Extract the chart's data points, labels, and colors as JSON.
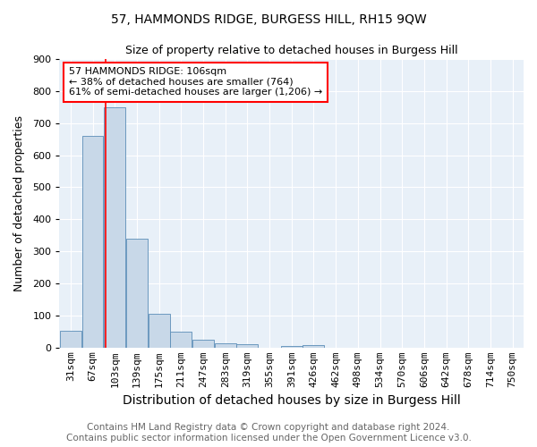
{
  "title": "57, HAMMONDS RIDGE, BURGESS HILL, RH15 9QW",
  "subtitle": "Size of property relative to detached houses in Burgess Hill",
  "xlabel": "Distribution of detached houses by size in Burgess Hill",
  "ylabel": "Number of detached properties",
  "footer_line1": "Contains HM Land Registry data © Crown copyright and database right 2024.",
  "footer_line2": "Contains public sector information licensed under the Open Government Licence v3.0.",
  "bin_labels": [
    "31sqm",
    "67sqm",
    "103sqm",
    "139sqm",
    "175sqm",
    "211sqm",
    "247sqm",
    "283sqm",
    "319sqm",
    "355sqm",
    "391sqm",
    "426sqm",
    "462sqm",
    "498sqm",
    "534sqm",
    "570sqm",
    "606sqm",
    "642sqm",
    "678sqm",
    "714sqm",
    "750sqm"
  ],
  "bar_values": [
    55,
    660,
    750,
    340,
    108,
    52,
    27,
    15,
    11,
    0,
    8,
    9,
    0,
    0,
    0,
    0,
    0,
    0,
    0,
    0,
    0
  ],
  "bar_color": "#c8d8e8",
  "bar_edge_color": "#5b8db8",
  "property_line_label": "57 HAMMONDS RIDGE: 106sqm",
  "annotation_line1": "← 38% of detached houses are smaller (764)",
  "annotation_line2": "61% of semi-detached houses are larger (1,206) →",
  "annotation_box_color": "white",
  "annotation_box_edge_color": "red",
  "red_line_color": "red",
  "ylim": [
    0,
    900
  ],
  "yticks": [
    0,
    100,
    200,
    300,
    400,
    500,
    600,
    700,
    800,
    900
  ],
  "bin_edges": [
    31,
    67,
    103,
    139,
    175,
    211,
    247,
    283,
    319,
    355,
    391,
    426,
    462,
    498,
    534,
    570,
    606,
    642,
    678,
    714,
    750
  ],
  "property_value": 106,
  "title_fontsize": 10,
  "subtitle_fontsize": 9,
  "xlabel_fontsize": 10,
  "ylabel_fontsize": 9,
  "tick_fontsize": 8,
  "footer_fontsize": 7.5,
  "annot_fontsize": 8,
  "bg_color": "#e8f0f8",
  "fig_bg_color": "#ffffff"
}
